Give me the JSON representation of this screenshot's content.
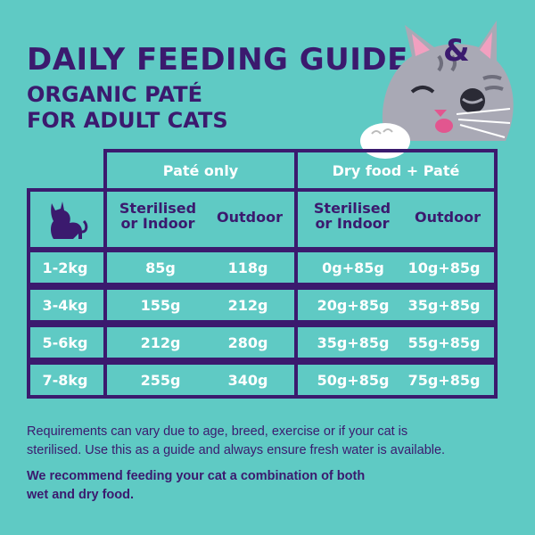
{
  "header": {
    "title": "DAILY FEEDING GUIDE",
    "subtitle_line1": "ORGANIC PATÉ",
    "subtitle_line2": "FOR ADULT CATS"
  },
  "table": {
    "groups": [
      "Paté only",
      "Dry food + Paté"
    ],
    "subheaders": {
      "pate_sterilised_1": "Sterilised",
      "pate_sterilised_2": "or Indoor",
      "pate_outdoor": "Outdoor",
      "dry_sterilised_1": "Sterilised",
      "dry_sterilised_2": "or Indoor",
      "dry_outdoor": "Outdoor"
    },
    "rows": [
      {
        "weight": "1-2kg",
        "pate_sterilised": "85g",
        "pate_outdoor": "118g",
        "dry_sterilised": "0g+85g",
        "dry_outdoor": "10g+85g"
      },
      {
        "weight": "3-4kg",
        "pate_sterilised": "155g",
        "pate_outdoor": "212g",
        "dry_sterilised": "20g+85g",
        "dry_outdoor": "35g+85g"
      },
      {
        "weight": "5-6kg",
        "pate_sterilised": "212g",
        "pate_outdoor": "280g",
        "dry_sterilised": "35g+85g",
        "dry_outdoor": "55g+85g"
      },
      {
        "weight": "7-8kg",
        "pate_sterilised": "255g",
        "pate_outdoor": "340g",
        "dry_sterilised": "50g+85g",
        "dry_outdoor": "75g+85g"
      }
    ]
  },
  "notes": {
    "line1": "Requirements can vary due to age, breed, exercise or if your cat is",
    "line2": "sterilised. Use this as a guide and always ensure fresh water is available.",
    "line3": "We recommend feeding your cat a combination of both",
    "line4": "wet and dry food."
  },
  "colors": {
    "background": "#5fcac4",
    "primary": "#3b1a6e",
    "text_on_table": "#ffffff"
  },
  "icons": [
    "cat-silhouette-icon",
    "cat-illustration"
  ]
}
